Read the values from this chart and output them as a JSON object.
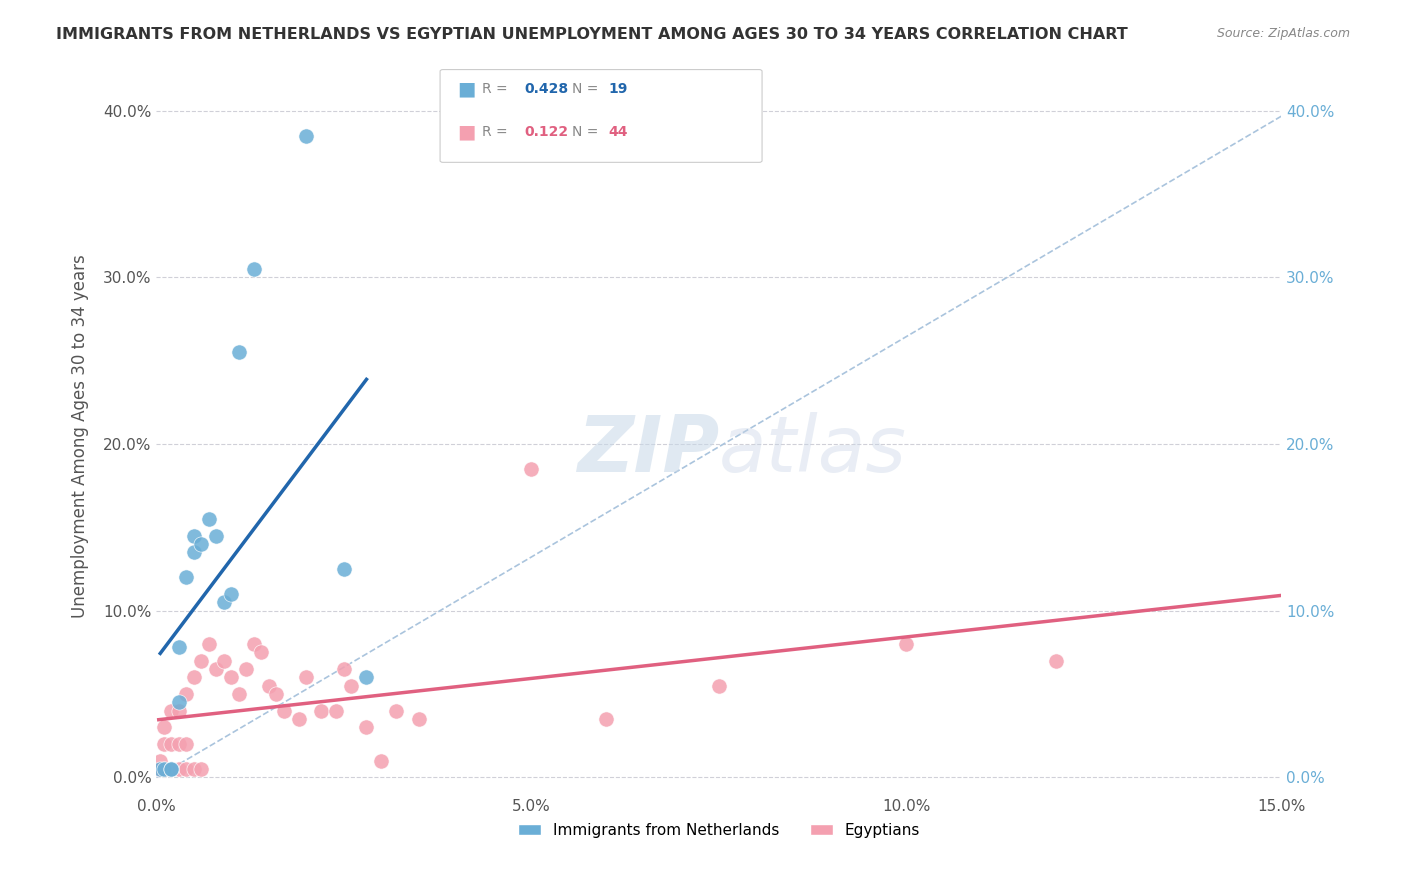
{
  "title": "IMMIGRANTS FROM NETHERLANDS VS EGYPTIAN UNEMPLOYMENT AMONG AGES 30 TO 34 YEARS CORRELATION CHART",
  "source": "Source: ZipAtlas.com",
  "ylabel": "Unemployment Among Ages 30 to 34 years",
  "xlabel_ticks": [
    "0.0%",
    "5.0%",
    "10.0%",
    "15.0%"
  ],
  "xlabel_vals": [
    0.0,
    0.05,
    0.1,
    0.15
  ],
  "ylabel_ticks": [
    "0.0%",
    "10.0%",
    "20.0%",
    "30.0%",
    "40.0%"
  ],
  "ylabel_vals": [
    0.0,
    0.1,
    0.2,
    0.3,
    0.4
  ],
  "xlim": [
    0.0,
    0.15
  ],
  "ylim": [
    -0.01,
    0.42
  ],
  "legend1_label": "Immigrants from Netherlands",
  "legend2_label": "Egyptians",
  "r1": "0.428",
  "n1": "19",
  "r2": "0.122",
  "n2": "44",
  "blue_color": "#6aaed6",
  "pink_color": "#f4a0b0",
  "blue_line_color": "#2166ac",
  "pink_line_color": "#e06080",
  "diag_color": "#aac4dd",
  "watermark_color": "#d0dce8",
  "background_color": "#ffffff",
  "grid_color": "#d0d0d8",
  "blue_points_x": [
    0.0005,
    0.001,
    0.002,
    0.002,
    0.003,
    0.003,
    0.004,
    0.005,
    0.005,
    0.006,
    0.007,
    0.008,
    0.009,
    0.01,
    0.011,
    0.013,
    0.02,
    0.025,
    0.028
  ],
  "blue_points_y": [
    0.005,
    0.005,
    0.005,
    0.005,
    0.045,
    0.078,
    0.12,
    0.135,
    0.145,
    0.14,
    0.155,
    0.145,
    0.105,
    0.11,
    0.255,
    0.305,
    0.385,
    0.125,
    0.06
  ],
  "pink_points_x": [
    0.0003,
    0.0005,
    0.001,
    0.001,
    0.001,
    0.002,
    0.002,
    0.002,
    0.003,
    0.003,
    0.003,
    0.004,
    0.004,
    0.004,
    0.005,
    0.005,
    0.006,
    0.006,
    0.007,
    0.008,
    0.009,
    0.01,
    0.011,
    0.012,
    0.013,
    0.014,
    0.015,
    0.016,
    0.017,
    0.019,
    0.02,
    0.022,
    0.024,
    0.025,
    0.026,
    0.028,
    0.03,
    0.032,
    0.035,
    0.05,
    0.06,
    0.075,
    0.1,
    0.12
  ],
  "pink_points_y": [
    0.005,
    0.01,
    0.005,
    0.02,
    0.03,
    0.005,
    0.02,
    0.04,
    0.005,
    0.02,
    0.04,
    0.005,
    0.02,
    0.05,
    0.005,
    0.06,
    0.005,
    0.07,
    0.08,
    0.065,
    0.07,
    0.06,
    0.05,
    0.065,
    0.08,
    0.075,
    0.055,
    0.05,
    0.04,
    0.035,
    0.06,
    0.04,
    0.04,
    0.065,
    0.055,
    0.03,
    0.01,
    0.04,
    0.035,
    0.185,
    0.035,
    0.055,
    0.08,
    0.07
  ]
}
